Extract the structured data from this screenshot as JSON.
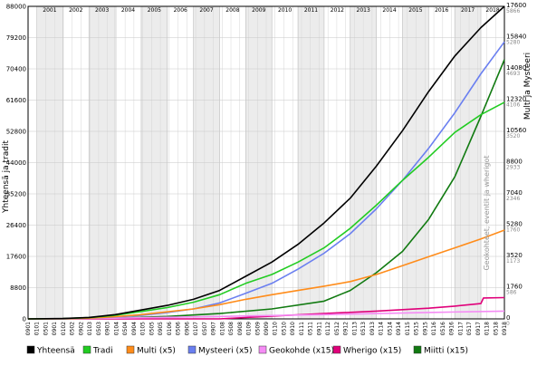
{
  "chart_data": {
    "type": "line",
    "ylabel_left": "Yhteensä ja tradit",
    "ylabel_right": "Multi ja Mysteeri",
    "ylabel_right_gray": "Geokohteet, eventit ja wherigot",
    "left_ticks": [
      "88000",
      "79200",
      "70400",
      "61600",
      "52800",
      "44000",
      "35200",
      "26400",
      "17600",
      "8800",
      "0"
    ],
    "right_ticks": [
      "17600",
      "15840",
      "14080",
      "12320",
      "10560",
      "8800",
      "7040",
      "5280",
      "3520",
      "1760",
      "0"
    ],
    "right_gray_ticks": [
      "5866",
      "5280",
      "4693",
      "4106",
      "3520",
      "2933",
      "2346",
      "1760",
      "1173",
      "586",
      "0"
    ],
    "ylim_left": [
      0,
      88000
    ],
    "ylim_right": [
      0,
      17600
    ],
    "year_labels": [
      "2001",
      "2002",
      "2003",
      "2004",
      "2005",
      "2006",
      "2007",
      "2008",
      "2009",
      "2010",
      "2011",
      "2012",
      "2013",
      "2014",
      "2015",
      "2016",
      "2017",
      "2018"
    ],
    "month_labels": [
      "0901",
      "0101",
      "0501",
      "0901",
      "0102",
      "0502",
      "0902",
      "0103",
      "0503",
      "0903",
      "0104",
      "0504",
      "0904",
      "0105",
      "0505",
      "0905",
      "0106",
      "0506",
      "0906",
      "0107",
      "0507",
      "0907",
      "0108",
      "0508",
      "0908",
      "0109",
      "0509",
      "0909",
      "0110",
      "0510",
      "0910",
      "0111",
      "0511",
      "0911",
      "0112",
      "0512",
      "0912",
      "0113",
      "0513",
      "0913",
      "0114",
      "0514",
      "0914",
      "0115",
      "0515",
      "0915",
      "0116",
      "0516",
      "0916",
      "0117",
      "0517",
      "0917",
      "0118",
      "0518",
      "0918"
    ],
    "x_start": 2000.67,
    "x_end": 2018.9,
    "grid": true,
    "legend_position": "bottom",
    "series": [
      {
        "name": "Yhteensä",
        "color": "#000000",
        "axis": "left",
        "x": [
          2000.67,
          2002,
          2003,
          2004,
          2005,
          2006,
          2007,
          2008,
          2009,
          2010,
          2011,
          2012,
          2013,
          2014,
          2015,
          2016,
          2017,
          2018,
          2018.9
        ],
        "y": [
          0,
          100,
          400,
          1200,
          2500,
          3800,
          5500,
          8000,
          12000,
          16000,
          21000,
          27000,
          34000,
          43000,
          53000,
          64000,
          74000,
          82000,
          88000
        ]
      },
      {
        "name": "Tradi",
        "color": "#22cc22",
        "axis": "left",
        "x": [
          2000.67,
          2002,
          2003,
          2004,
          2005,
          2006,
          2007,
          2008,
          2009,
          2010,
          2011,
          2012,
          2013,
          2014,
          2015,
          2016,
          2017,
          2018,
          2018.9
        ],
        "y": [
          0,
          80,
          350,
          1000,
          2100,
          3200,
          4700,
          6800,
          10000,
          12500,
          16000,
          20000,
          25500,
          32000,
          39000,
          45500,
          52500,
          57500,
          61000
        ]
      },
      {
        "name": "Multi (x5)",
        "color": "#ff8c1a",
        "axis": "left",
        "x": [
          2000.67,
          2002,
          2003,
          2004,
          2005,
          2006,
          2007,
          2008,
          2009,
          2010,
          2011,
          2012,
          2013,
          2014,
          2015,
          2016,
          2017,
          2018,
          2018.9
        ],
        "y": [
          0,
          50,
          200,
          600,
          1200,
          2000,
          2800,
          4000,
          5500,
          6800,
          8000,
          9200,
          10500,
          12500,
          15000,
          17500,
          20000,
          22500,
          25000
        ]
      },
      {
        "name": "Mysteeri (x5)",
        "color": "#6a7ff0",
        "axis": "left",
        "x": [
          2000.67,
          2002,
          2003,
          2004,
          2005,
          2006,
          2007,
          2008,
          2009,
          2010,
          2011,
          2012,
          2013,
          2014,
          2015,
          2016,
          2017,
          2018,
          2018.9
        ],
        "y": [
          0,
          40,
          200,
          500,
          1000,
          1800,
          2800,
          4500,
          7200,
          10000,
          14000,
          18500,
          24000,
          31000,
          39000,
          48000,
          58000,
          69000,
          78000
        ]
      },
      {
        "name": "Geokohde (x15)",
        "color": "#f58cf5",
        "axis": "left",
        "x": [
          2000.67,
          2004,
          2008,
          2012,
          2016,
          2018.9
        ],
        "y": [
          0,
          200,
          700,
          1200,
          1800,
          2200
        ]
      },
      {
        "name": "Wherigo (x15)",
        "color": "#e0007a",
        "axis": "left",
        "x": [
          2000.67,
          2008,
          2010,
          2012,
          2014,
          2016,
          2017,
          2018,
          2018.1,
          2018.9
        ],
        "y": [
          0,
          0,
          800,
          1500,
          2200,
          3000,
          3600,
          4300,
          5900,
          6000
        ]
      },
      {
        "name": "Miitti (x15)",
        "color": "#117a11",
        "axis": "left",
        "x": [
          2000.67,
          2004,
          2006,
          2008,
          2010,
          2012,
          2013,
          2014,
          2015,
          2016,
          2017,
          2018,
          2018.9
        ],
        "y": [
          0,
          200,
          700,
          1500,
          2800,
          5000,
          8000,
          13000,
          19000,
          28000,
          40000,
          57000,
          73000
        ]
      }
    ]
  }
}
